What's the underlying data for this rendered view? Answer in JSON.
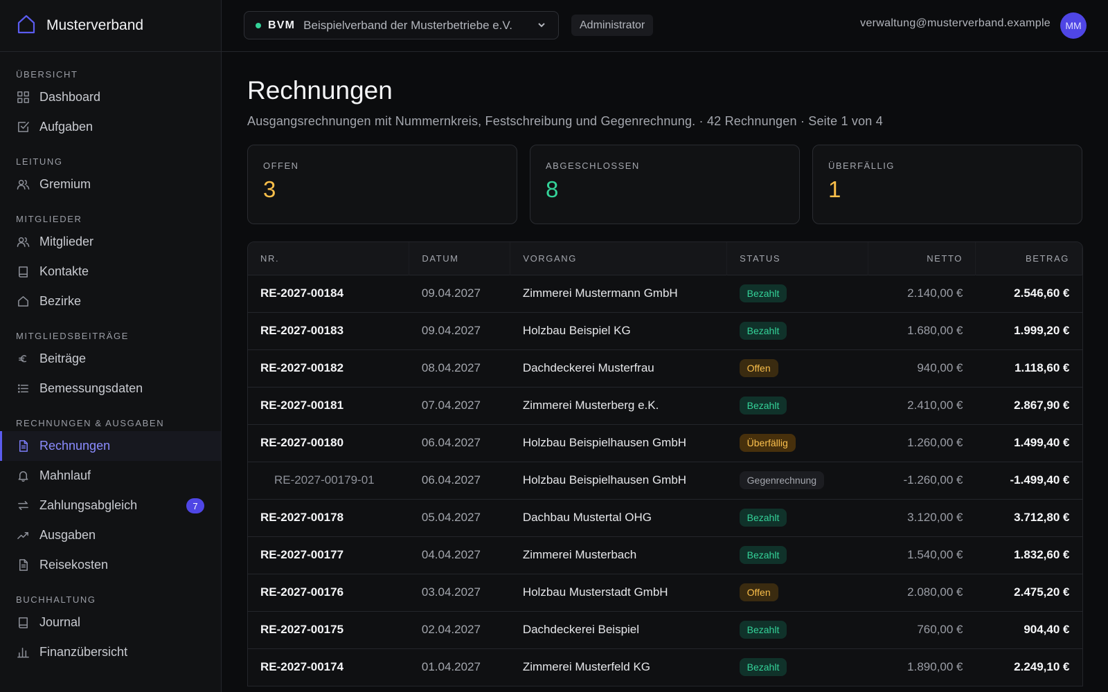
{
  "app": {
    "name": "Musterverband"
  },
  "topbar": {
    "org_code": "BVM",
    "org_name": "Beispielverband der Musterbetriebe e.V.",
    "role": "Administrator",
    "email": "verwaltung@musterverband.example",
    "avatar_initials": "MM"
  },
  "sidebar": {
    "sections": {
      "uebersicht": "ÜBERSICHT",
      "leitung": "LEITUNG",
      "mitglieder": "MITGLIEDER",
      "beitraege": "MITGLIEDSBEITRÄGE",
      "rechnungen": "RECHNUNGEN & AUSGABEN",
      "buchhaltung": "BUCHHALTUNG"
    },
    "items": {
      "dashboard": "Dashboard",
      "aufgaben": "Aufgaben",
      "gremium": "Gremium",
      "mitglieder": "Mitglieder",
      "kontakte": "Kontakte",
      "bezirke": "Bezirke",
      "beitraege": "Beiträge",
      "bemessungsdaten": "Bemessungsdaten",
      "rechnungen": "Rechnungen",
      "mahnlauf": "Mahnlauf",
      "zahlungsabgleich": "Zahlungsabgleich",
      "zahlungsabgleich_badge": "7",
      "ausgaben": "Ausgaben",
      "reisekosten": "Reisekosten",
      "journal": "Journal",
      "finanzuebersicht": "Finanzübersicht"
    },
    "active_item": "Rechnungen",
    "accent_color": "#5b5cf0"
  },
  "page": {
    "title": "Rechnungen",
    "subtitle": "Ausgangsrechnungen mit Nummernkreis, Festschreibung und Gegenrechnung. · 42 Rechnungen · Seite 1 von 4"
  },
  "stats": [
    {
      "label": "OFFEN",
      "value": "3",
      "color": "#fbbf4a"
    },
    {
      "label": "ABGESCHLOSSEN",
      "value": "8",
      "color": "#34d399"
    },
    {
      "label": "ÜBERFÄLLIG",
      "value": "1",
      "color": "#fbbf4a"
    }
  ],
  "table": {
    "headers": {
      "nr": "NR.",
      "datum": "DATUM",
      "vorgang": "VORGANG",
      "status": "STATUS",
      "netto": "NETTO",
      "betrag": "BETRAG"
    },
    "rows": [
      {
        "nr": "RE-2027-00184",
        "datum": "09.04.2027",
        "vorgang": "Zimmerei Mustermann GmbH",
        "status": "Bezahlt",
        "status_kind": "bezahlt",
        "netto": "2.140,00 €",
        "betrag": "2.546,60 €"
      },
      {
        "nr": "RE-2027-00183",
        "datum": "09.04.2027",
        "vorgang": "Holzbau Beispiel KG",
        "status": "Bezahlt",
        "status_kind": "bezahlt",
        "netto": "1.680,00 €",
        "betrag": "1.999,20 €"
      },
      {
        "nr": "RE-2027-00182",
        "datum": "08.04.2027",
        "vorgang": "Dachdeckerei Musterfrau",
        "status": "Offen",
        "status_kind": "offen",
        "netto": "940,00 €",
        "betrag": "1.118,60 €"
      },
      {
        "nr": "RE-2027-00181",
        "datum": "07.04.2027",
        "vorgang": "Zimmerei Musterberg e.K.",
        "status": "Bezahlt",
        "status_kind": "bezahlt",
        "netto": "2.410,00 €",
        "betrag": "2.867,90 €"
      },
      {
        "nr": "RE-2027-00180",
        "datum": "06.04.2027",
        "vorgang": "Holzbau Beispielhausen GmbH",
        "status": "Überfällig",
        "status_kind": "ueberfaellig",
        "netto": "1.260,00 €",
        "betrag": "1.499,40 €"
      },
      {
        "nr": "RE-2027-00179-01",
        "datum": "06.04.2027",
        "vorgang": "Holzbau Beispielhausen GmbH",
        "status": "Gegenrechnung",
        "status_kind": "gegen",
        "netto": "-1.260,00 €",
        "betrag": "-1.499,40 €",
        "is_sub": true
      },
      {
        "nr": "RE-2027-00178",
        "datum": "05.04.2027",
        "vorgang": "Dachbau Mustertal OHG",
        "status": "Bezahlt",
        "status_kind": "bezahlt",
        "netto": "3.120,00 €",
        "betrag": "3.712,80 €"
      },
      {
        "nr": "RE-2027-00177",
        "datum": "04.04.2027",
        "vorgang": "Zimmerei Musterbach",
        "status": "Bezahlt",
        "status_kind": "bezahlt",
        "netto": "1.540,00 €",
        "betrag": "1.832,60 €"
      },
      {
        "nr": "RE-2027-00176",
        "datum": "03.04.2027",
        "vorgang": "Holzbau Musterstadt GmbH",
        "status": "Offen",
        "status_kind": "offen",
        "netto": "2.080,00 €",
        "betrag": "2.475,20 €"
      },
      {
        "nr": "RE-2027-00175",
        "datum": "02.04.2027",
        "vorgang": "Dachdeckerei Beispiel",
        "status": "Bezahlt",
        "status_kind": "bezahlt",
        "netto": "760,00 €",
        "betrag": "904,40 €"
      },
      {
        "nr": "RE-2027-00174",
        "datum": "01.04.2027",
        "vorgang": "Zimmerei Musterfeld KG",
        "status": "Bezahlt",
        "status_kind": "bezahlt",
        "netto": "1.890,00 €",
        "betrag": "2.249,10 €"
      }
    ]
  }
}
